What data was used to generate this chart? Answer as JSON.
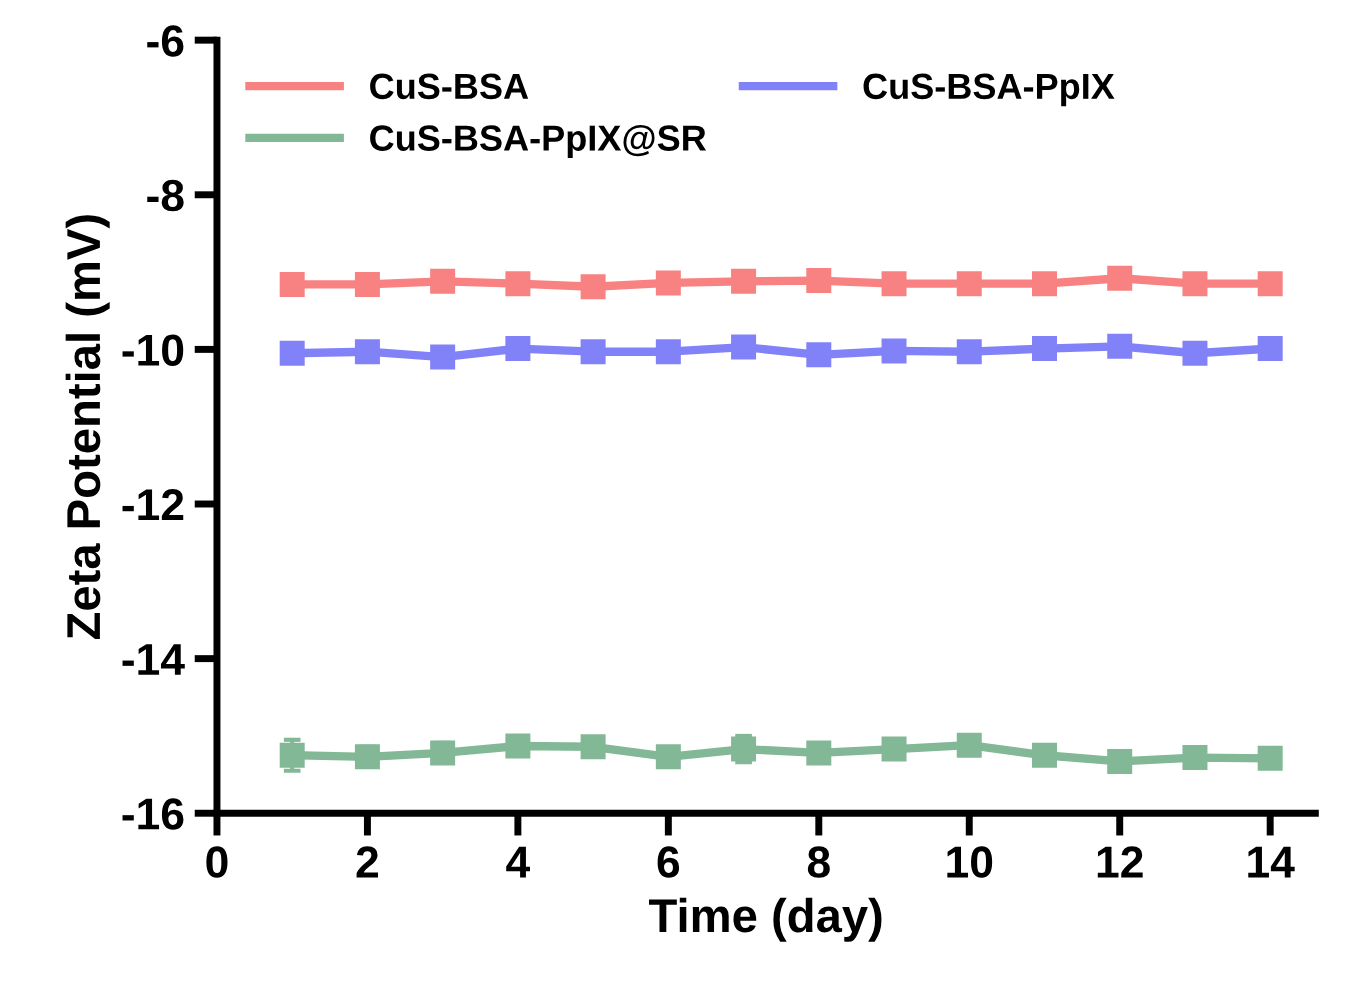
{
  "chart_data": {
    "type": "line",
    "xlabel": "Time (day)",
    "ylabel": "Zeta Potential (mV)",
    "x": [
      1,
      2,
      3,
      4,
      5,
      6,
      7,
      8,
      9,
      10,
      11,
      12,
      13,
      14
    ],
    "series": [
      {
        "name": "CuS-BSA",
        "color": "#f88282",
        "values": [
          -9.16,
          -9.16,
          -9.12,
          -9.15,
          -9.19,
          -9.14,
          -9.12,
          -9.11,
          -9.15,
          -9.15,
          -9.15,
          -9.08,
          -9.15,
          -9.15
        ],
        "errors": [
          0.03,
          0.06,
          0.03,
          0.03,
          0.03,
          0.05,
          0.06,
          0.06,
          0.03,
          0.04,
          0.04,
          0.04,
          0.05,
          0.03
        ]
      },
      {
        "name": "CuS-BSA-PpIX",
        "color": "#8282f8",
        "values": [
          -10.05,
          -10.03,
          -10.1,
          -9.99,
          -10.03,
          -10.03,
          -9.97,
          -10.07,
          -10.02,
          -10.03,
          -9.99,
          -9.96,
          -10.05,
          -9.99
        ],
        "errors": [
          0.07,
          0.05,
          0.03,
          0.04,
          0.03,
          0.03,
          0.03,
          0.04,
          0.05,
          0.04,
          0.07,
          0.03,
          0.04,
          0.08
        ]
      },
      {
        "name": "CuS-BSA-PpIX@SR",
        "color": "#82b896",
        "values": [
          -15.25,
          -15.27,
          -15.22,
          -15.13,
          -15.14,
          -15.27,
          -15.17,
          -15.22,
          -15.17,
          -15.12,
          -15.25,
          -15.33,
          -15.28,
          -15.29
        ],
        "errors": [
          0.2,
          0.13,
          0.13,
          0.05,
          0.12,
          0.05,
          0.17,
          0.08,
          0.06,
          0.05,
          0.1,
          0.07,
          0.05,
          0.05
        ]
      }
    ],
    "xlim": [
      0,
      14.6
    ],
    "xticks": [
      0,
      2,
      4,
      6,
      8,
      10,
      12,
      14
    ],
    "ylim": [
      -16,
      -6
    ],
    "yticks": [
      -16,
      -14,
      -12,
      -10,
      -8,
      -6
    ],
    "marker": "square",
    "line_style": "solid",
    "grid": false,
    "legend": "top left"
  }
}
